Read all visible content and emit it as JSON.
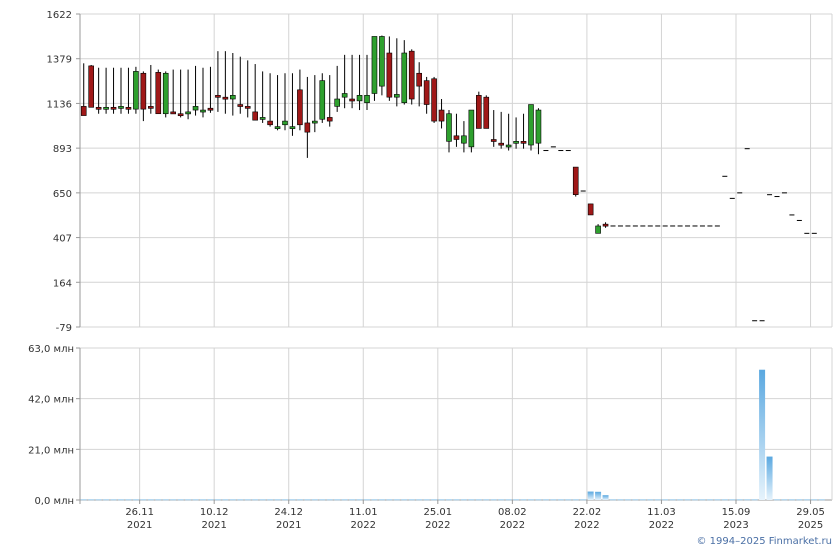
{
  "chart_data": [
    {
      "type": "candlestick",
      "y_ticks": [
        "1622",
        "1379",
        "1136",
        "893",
        "650",
        "407",
        "164",
        "-79"
      ],
      "ylim": [
        -79,
        1622
      ],
      "grid": true,
      "x_ticks": [
        {
          "date": "26.11",
          "year": "2021",
          "i": 8
        },
        {
          "date": "10.12",
          "year": "2021",
          "i": 18
        },
        {
          "date": "24.12",
          "year": "2021",
          "i": 28
        },
        {
          "date": "11.01",
          "year": "2022",
          "i": 38
        },
        {
          "date": "25.01",
          "year": "2022",
          "i": 48
        },
        {
          "date": "08.02",
          "year": "2022",
          "i": 58
        },
        {
          "date": "22.02",
          "year": "2022",
          "i": 68
        },
        {
          "date": "11.03",
          "year": "2022",
          "i": 78
        },
        {
          "date": "15.09",
          "year": "2023",
          "i": 88
        },
        {
          "date": "29.05",
          "year": "2025",
          "i": 98
        }
      ],
      "candles": [
        [
          1120,
          1354,
          1075,
          1070,
          "down"
        ],
        [
          1340,
          1345,
          1120,
          1115,
          "down"
        ],
        [
          1115,
          1330,
          1080,
          1105,
          "down"
        ],
        [
          1105,
          1330,
          1080,
          1115,
          "up"
        ],
        [
          1115,
          1330,
          1080,
          1105,
          "down"
        ],
        [
          1110,
          1330,
          1080,
          1120,
          "up"
        ],
        [
          1115,
          1330,
          1080,
          1105,
          "down"
        ],
        [
          1105,
          1335,
          1080,
          1310,
          "up"
        ],
        [
          1300,
          1310,
          1040,
          1105,
          "down"
        ],
        [
          1120,
          1345,
          1080,
          1115,
          "down"
        ],
        [
          1305,
          1320,
          1080,
          1080,
          "down"
        ],
        [
          1080,
          1310,
          1060,
          1300,
          "up"
        ],
        [
          1090,
          1320,
          1080,
          1085,
          "down"
        ],
        [
          1080,
          1320,
          1060,
          1080,
          "down"
        ],
        [
          1080,
          1320,
          1050,
          1090,
          "up"
        ],
        [
          1100,
          1340,
          1070,
          1120,
          "up"
        ],
        [
          1090,
          1330,
          1060,
          1100,
          "up"
        ],
        [
          1110,
          1335,
          1085,
          1105,
          "down"
        ],
        [
          1180,
          1420,
          1090,
          1170,
          "down"
        ],
        [
          1170,
          1420,
          1080,
          1160,
          "down"
        ],
        [
          1160,
          1410,
          1070,
          1180,
          "up"
        ],
        [
          1130,
          1390,
          1080,
          1125,
          "down"
        ],
        [
          1120,
          1370,
          1060,
          1115,
          "down"
        ],
        [
          1090,
          1350,
          1050,
          1045,
          "down"
        ],
        [
          1060,
          1310,
          1030,
          1060,
          "up"
        ],
        [
          1040,
          1300,
          1010,
          1020,
          "down"
        ],
        [
          1010,
          1290,
          990,
          1010,
          "up"
        ],
        [
          1020,
          1300,
          990,
          1040,
          "up"
        ],
        [
          1000,
          1300,
          960,
          1010,
          "up"
        ],
        [
          1210,
          1320,
          990,
          1020,
          "down"
        ],
        [
          1030,
          1280,
          840,
          980,
          "down"
        ],
        [
          1030,
          1290,
          980,
          1040,
          "up"
        ],
        [
          1050,
          1300,
          1030,
          1260,
          "up"
        ],
        [
          1040,
          1290,
          1010,
          1060,
          "down"
        ],
        [
          1120,
          1340,
          1090,
          1160,
          "up"
        ],
        [
          1170,
          1400,
          1110,
          1190,
          "up"
        ],
        [
          1160,
          1400,
          1110,
          1150,
          "down"
        ],
        [
          1150,
          1400,
          1100,
          1180,
          "up"
        ],
        [
          1140,
          1400,
          1100,
          1180,
          "up"
        ],
        [
          1190,
          1500,
          1150,
          1500,
          "up"
        ],
        [
          1230,
          1505,
          1180,
          1500,
          "up"
        ],
        [
          1410,
          1500,
          1150,
          1170,
          "down"
        ],
        [
          1170,
          1490,
          1120,
          1185,
          "up"
        ],
        [
          1140,
          1480,
          1130,
          1410,
          "up"
        ],
        [
          1420,
          1430,
          1130,
          1160,
          "down"
        ],
        [
          1300,
          1360,
          1120,
          1230,
          "down"
        ],
        [
          1260,
          1280,
          1080,
          1130,
          "down"
        ],
        [
          1270,
          1280,
          1030,
          1040,
          "down"
        ],
        [
          1100,
          1160,
          1000,
          1040,
          "down"
        ],
        [
          930,
          1100,
          870,
          1080,
          "up"
        ],
        [
          940,
          1080,
          900,
          960,
          "down"
        ],
        [
          920,
          1040,
          870,
          960,
          "up"
        ],
        [
          900,
          1100,
          870,
          1100,
          "up"
        ],
        [
          1180,
          1200,
          1000,
          1000,
          "down"
        ],
        [
          1170,
          1180,
          1000,
          1000,
          "down"
        ],
        [
          930,
          1100,
          900,
          940,
          "down"
        ],
        [
          920,
          1090,
          890,
          920,
          "down"
        ],
        [
          910,
          1080,
          880,
          910,
          "up"
        ],
        [
          920,
          1060,
          890,
          930,
          "up"
        ],
        [
          930,
          1080,
          890,
          920,
          "down"
        ],
        [
          910,
          1130,
          880,
          1130,
          "up"
        ],
        [
          1100,
          1110,
          860,
          920,
          "up"
        ],
        [
          880,
          880,
          880,
          880,
          "dash"
        ],
        [
          900,
          900,
          900,
          900,
          "dash"
        ],
        [
          880,
          880,
          880,
          880,
          "dash"
        ],
        [
          880,
          880,
          880,
          880,
          "dash"
        ],
        [
          790,
          790,
          630,
          640,
          "down"
        ],
        [
          660,
          660,
          660,
          660,
          "dash"
        ],
        [
          590,
          590,
          530,
          530,
          "down"
        ],
        [
          430,
          480,
          430,
          470,
          "up"
        ],
        [
          470,
          490,
          460,
          480,
          "down"
        ],
        [
          470,
          470,
          470,
          470,
          "dash"
        ],
        [
          470,
          470,
          470,
          470,
          "dash"
        ],
        [
          470,
          470,
          470,
          470,
          "dash"
        ],
        [
          470,
          470,
          470,
          470,
          "dash"
        ],
        [
          470,
          470,
          470,
          470,
          "dash"
        ],
        [
          470,
          470,
          470,
          470,
          "dash"
        ],
        [
          470,
          470,
          470,
          470,
          "dash"
        ],
        [
          470,
          470,
          470,
          470,
          "dash"
        ],
        [
          470,
          470,
          470,
          470,
          "dash"
        ],
        [
          470,
          470,
          470,
          470,
          "dash"
        ],
        [
          470,
          470,
          470,
          470,
          "dash"
        ],
        [
          470,
          470,
          470,
          470,
          "dash"
        ],
        [
          470,
          470,
          470,
          470,
          "dash"
        ],
        [
          470,
          470,
          470,
          470,
          "dash"
        ],
        [
          470,
          470,
          470,
          470,
          "dash"
        ],
        [
          740,
          740,
          740,
          740,
          "dash"
        ],
        [
          620,
          620,
          620,
          620,
          "dash"
        ],
        [
          650,
          650,
          650,
          650,
          "dash"
        ],
        [
          890,
          890,
          890,
          890,
          "dash"
        ],
        [
          -45,
          -45,
          -45,
          -45,
          "dash"
        ],
        [
          -45,
          -45,
          -45,
          -45,
          "dash"
        ],
        [
          640,
          640,
          640,
          640,
          "dash"
        ],
        [
          630,
          630,
          630,
          630,
          "dash"
        ],
        [
          650,
          650,
          650,
          650,
          "dash"
        ],
        [
          530,
          530,
          530,
          530,
          "dash"
        ],
        [
          500,
          500,
          500,
          500,
          "dash"
        ],
        [
          430,
          430,
          430,
          430,
          "dash"
        ],
        [
          430,
          430,
          430,
          430,
          "dash"
        ]
      ],
      "colors": {
        "up": "#2ea02e",
        "down": "#a01818",
        "grid": "#d4d4d4",
        "axis": "#9a9a9a"
      }
    },
    {
      "type": "bar",
      "y_ticks": [
        "63,0 млн",
        "42,0 млн",
        "21,0 млн",
        "0,0 млн"
      ],
      "ylim": [
        0,
        63
      ],
      "unit": "млн",
      "values": [
        0.3,
        0.3,
        0.3,
        0.3,
        0.3,
        0.3,
        0.3,
        0.3,
        0.3,
        0.3,
        0.3,
        0.3,
        0.3,
        0.3,
        0.3,
        0.3,
        0.3,
        0.3,
        0.3,
        0.3,
        0.3,
        0.3,
        0.3,
        0.3,
        0.3,
        0.3,
        0.3,
        0.3,
        0.3,
        0.3,
        0.3,
        0.3,
        0.3,
        0.3,
        0.3,
        0.3,
        0.3,
        0.3,
        0.3,
        0.3,
        0.3,
        0.3,
        0.3,
        0.3,
        0.3,
        0.3,
        0.3,
        0.3,
        0.3,
        0.3,
        0.3,
        0.3,
        0.3,
        0.3,
        0.3,
        0.3,
        0.3,
        0.3,
        0.3,
        0.3,
        0.3,
        0.3,
        0.3,
        0.3,
        0.3,
        0.3,
        0.3,
        0.3,
        3.5,
        3.4,
        2.0,
        0.3,
        0.3,
        0.3,
        0.3,
        0.3,
        0.3,
        0.3,
        0.3,
        0.3,
        0.3,
        0.3,
        0.3,
        0.3,
        0.3,
        0.3,
        0.3,
        0.3,
        0.3,
        0.3,
        0.3,
        0.3,
        0.3,
        0.3,
        0.3,
        0.3,
        0.3,
        0.3,
        0.3,
        0.3
      ],
      "highlights": [
        {
          "i": 91,
          "value": 54
        },
        {
          "i": 92,
          "value": 18
        }
      ],
      "colors": {
        "bar": "#9ccbeb",
        "grid": "#d4d4d4",
        "axis": "#9a9a9a"
      }
    }
  ],
  "credit": "© 1994–2025 Finmarket.ru"
}
